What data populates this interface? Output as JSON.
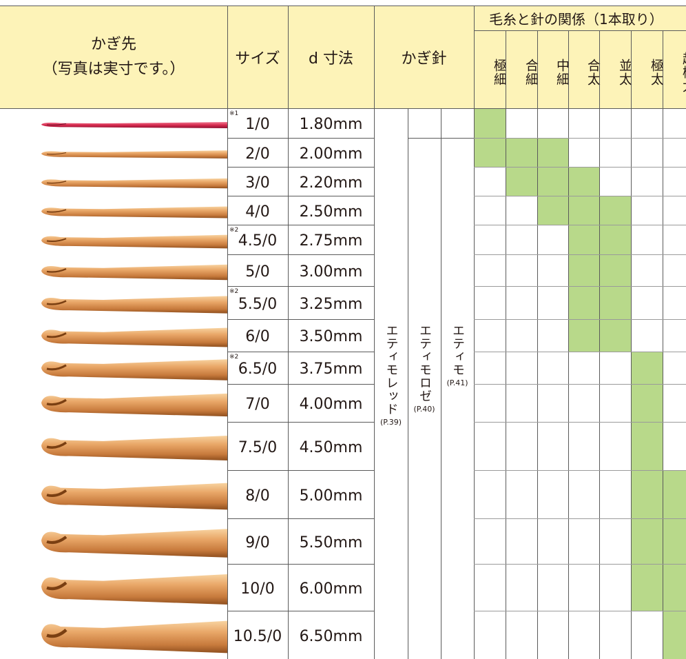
{
  "header": {
    "image": "かぎ先",
    "image_note": "（写真は実寸です。）",
    "size": "サイズ",
    "diameter": "d 寸法",
    "hooks": "かぎ針",
    "yarn": "毛糸と針の関係（1本取り）",
    "yarn_weights": [
      "極細",
      "合細",
      "中細",
      "合太",
      "並太",
      "極太",
      "超極太"
    ]
  },
  "series": [
    {
      "name": "エティモレッド",
      "page": "(P.39)"
    },
    {
      "name": "エティモロゼ",
      "page": "(P.40)"
    },
    {
      "name": "エティモ",
      "page": "(P.41)"
    }
  ],
  "rows": [
    {
      "note": "※1",
      "size": "1/0",
      "diameter": "1.80mm",
      "yarn": [
        true,
        false,
        false,
        false,
        false,
        false,
        false
      ]
    },
    {
      "size": "2/0",
      "diameter": "2.00mm",
      "yarn": [
        true,
        true,
        true,
        false,
        false,
        false,
        false
      ]
    },
    {
      "size": "3/0",
      "diameter": "2.20mm",
      "yarn": [
        false,
        true,
        true,
        true,
        false,
        false,
        false
      ]
    },
    {
      "size": "4/0",
      "diameter": "2.50mm",
      "yarn": [
        false,
        false,
        true,
        true,
        true,
        false,
        false
      ]
    },
    {
      "note": "※2",
      "size": "4.5/0",
      "diameter": "2.75mm",
      "yarn": [
        false,
        false,
        false,
        true,
        true,
        false,
        false
      ]
    },
    {
      "size": "5/0",
      "diameter": "3.00mm",
      "yarn": [
        false,
        false,
        false,
        true,
        true,
        false,
        false
      ]
    },
    {
      "note": "※2",
      "size": "5.5/0",
      "diameter": "3.25mm",
      "yarn": [
        false,
        false,
        false,
        true,
        true,
        false,
        false
      ]
    },
    {
      "size": "6/0",
      "diameter": "3.50mm",
      "yarn": [
        false,
        false,
        false,
        true,
        true,
        false,
        false
      ]
    },
    {
      "note": "※2",
      "size": "6.5/0",
      "diameter": "3.75mm",
      "yarn": [
        false,
        false,
        false,
        false,
        false,
        true,
        false
      ]
    },
    {
      "size": "7/0",
      "diameter": "4.00mm",
      "yarn": [
        false,
        false,
        false,
        false,
        false,
        true,
        false
      ]
    },
    {
      "size": "7.5/0",
      "diameter": "4.50mm",
      "yarn": [
        false,
        false,
        false,
        false,
        false,
        true,
        false
      ]
    },
    {
      "size": "8/0",
      "diameter": "5.00mm",
      "yarn": [
        false,
        false,
        false,
        false,
        false,
        true,
        true
      ]
    },
    {
      "size": "9/0",
      "diameter": "5.50mm",
      "yarn": [
        false,
        false,
        false,
        false,
        false,
        true,
        true
      ]
    },
    {
      "size": "10/0",
      "diameter": "6.00mm",
      "yarn": [
        false,
        false,
        false,
        false,
        false,
        true,
        true
      ]
    },
    {
      "size": "10.5/0",
      "diameter": "6.50mm",
      "yarn": [
        false,
        false,
        false,
        false,
        false,
        false,
        true
      ]
    }
  ]
}
